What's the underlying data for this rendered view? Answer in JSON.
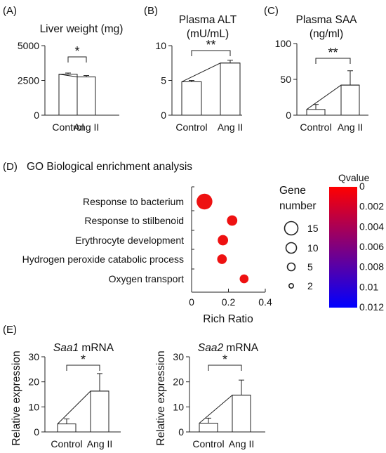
{
  "panel_labels": [
    "(A)",
    "(B)",
    "(C)",
    "(D)",
    "(E)"
  ],
  "colors": {
    "dot": "#ee1111",
    "cbar_top": "#ff0000",
    "cbar_bottom": "#0000ff",
    "bar_fill": "#ffffff"
  },
  "chart_data": [
    {
      "type": "bar",
      "panel": "(A)",
      "title": [
        "Liver weight (mg)"
      ],
      "categories": [
        "Control",
        "Ang II"
      ],
      "values": [
        2950,
        2750
      ],
      "errors": [
        80,
        100
      ],
      "ylim": [
        0,
        5000
      ],
      "yticks": [
        "0",
        "2500",
        "5000"
      ],
      "significance": "*"
    },
    {
      "type": "bar",
      "panel": "(B)",
      "title": [
        "Plasma ALT",
        "(mU/mL)"
      ],
      "categories": [
        "Control",
        "Ang II"
      ],
      "values": [
        4.8,
        7.5
      ],
      "errors": [
        0.2,
        0.4
      ],
      "ylim": [
        0,
        10
      ],
      "yticks": [
        "0",
        "5",
        "10"
      ],
      "significance": "**"
    },
    {
      "type": "bar",
      "panel": "(C)",
      "title": [
        "Plasma SAA",
        "(ng/ml)"
      ],
      "categories": [
        "Control",
        "Ang II"
      ],
      "values": [
        8,
        42
      ],
      "errors": [
        7,
        20
      ],
      "ylim": [
        0,
        100
      ],
      "yticks": [
        "0",
        "50",
        "100"
      ],
      "significance": "**"
    },
    {
      "type": "scatter",
      "panel": "(D)",
      "title": "GO Biological enrichment analysis",
      "xlabel": "Rich Ratio",
      "xlim": [
        0,
        0.4
      ],
      "xticks": [
        "0",
        "0.2",
        "0.4"
      ],
      "categories": [
        "Response to bacterium",
        "Response to stilbenoid",
        "Erythrocyte development",
        "Hydrogen peroxide catabolic process",
        "Oxygen transport"
      ],
      "x": [
        0.07,
        0.22,
        0.17,
        0.165,
        0.285
      ],
      "gene_number": [
        15,
        8,
        8,
        7,
        6
      ],
      "qvalue": [
        0,
        0,
        0,
        0,
        0
      ],
      "size_legend": {
        "title": [
          "Gene",
          "number"
        ],
        "values": [
          "15",
          "10",
          "5",
          "2"
        ]
      },
      "color_legend": {
        "title": "Qvalue",
        "ticks": [
          "0",
          "0.002",
          "0.004",
          "0.006",
          "0.008",
          "0.01",
          "0.012"
        ]
      }
    },
    {
      "type": "bar",
      "panel": "(E)",
      "title_gene": "Saa1",
      "title_suffix": " mRNA",
      "ylabel": "Relative expression",
      "categories": [
        "Control",
        "Ang II"
      ],
      "values": [
        3.2,
        16.3
      ],
      "errors": [
        2.0,
        7.0
      ],
      "ylim": [
        0,
        30
      ],
      "yticks": [
        "0",
        "10",
        "20",
        "30"
      ],
      "significance": "*"
    },
    {
      "type": "bar",
      "panel": "(E)",
      "title_gene": "Saa2",
      "title_suffix": " mRNA",
      "ylabel": "Relative expression",
      "categories": [
        "Control",
        "Ang II"
      ],
      "values": [
        3.5,
        14.7
      ],
      "errors": [
        2.0,
        6.0
      ],
      "ylim": [
        0,
        30
      ],
      "yticks": [
        "0",
        "10",
        "20",
        "30"
      ],
      "significance": "*"
    }
  ]
}
